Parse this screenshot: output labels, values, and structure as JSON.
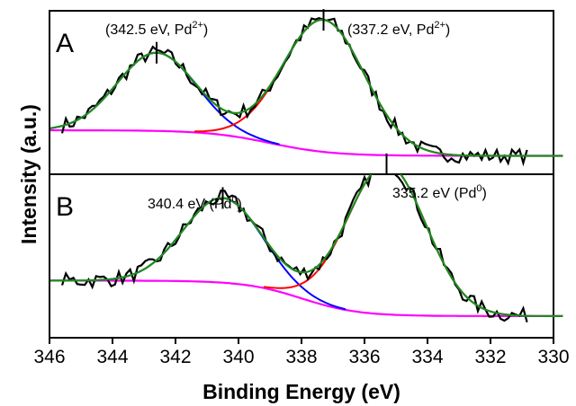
{
  "chart_data": {
    "type": "line",
    "xlabel": "Binding Energy (eV)",
    "ylabel": "Intensity (a.u.)",
    "xlim": [
      346,
      330
    ],
    "x_reversed": true,
    "x_ticks": [
      "346",
      "344",
      "342",
      "340",
      "338",
      "336",
      "334",
      "332",
      "330"
    ],
    "grid": false,
    "series_colors": {
      "experimental": "#000000",
      "total_fit": "#1f8a1f",
      "background": "#ff00ff",
      "peak_high": "#0000ff",
      "peak_low": "#ff0000"
    },
    "panels": [
      {
        "label": "A",
        "peaks": [
          {
            "center": 342.6,
            "amplitude": 0.58,
            "sigma": 1.25,
            "annotation_prefix": "(342.5 eV, Pd",
            "annotation_sup": "2+",
            "annotation_suffix": ")"
          },
          {
            "center": 337.3,
            "amplitude": 0.98,
            "sigma": 1.3,
            "annotation_prefix": "(337.2 eV, Pd",
            "annotation_sup": "2+",
            "annotation_suffix": ")"
          }
        ],
        "background": {
          "high": 0.22,
          "low": 0.03,
          "step_center": 339.0,
          "step_width": 1.0
        }
      },
      {
        "label": "B",
        "peaks": [
          {
            "center": 340.5,
            "amplitude": 0.62,
            "sigma": 1.25,
            "annotation_prefix": "340.4 eV (Pd",
            "annotation_sup": "0",
            "annotation_suffix": ")"
          },
          {
            "center": 335.3,
            "amplitude": 1.1,
            "sigma": 1.25,
            "annotation_prefix": "335.2 eV (Pd",
            "annotation_sup": "0",
            "annotation_suffix": ")"
          }
        ],
        "background": {
          "high": 0.3,
          "low": 0.04,
          "step_center": 338.0,
          "step_width": 0.9
        }
      }
    ]
  }
}
